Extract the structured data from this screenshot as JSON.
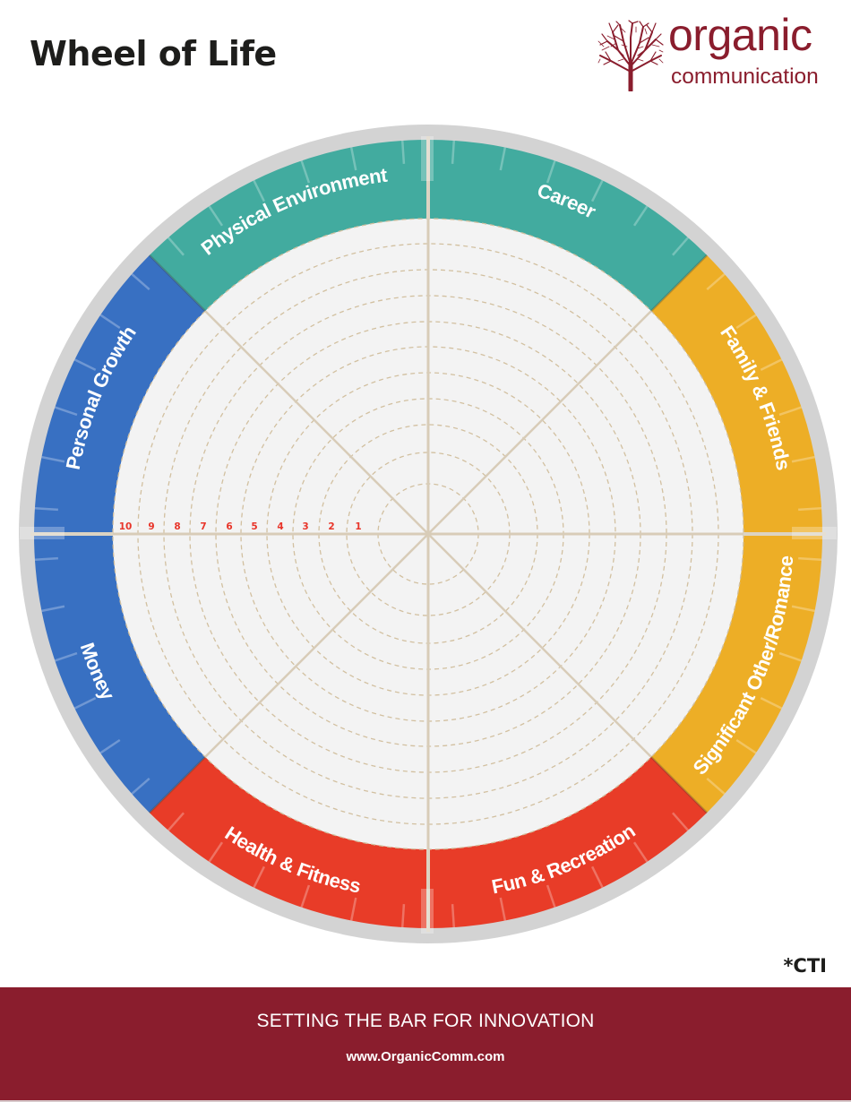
{
  "header": {
    "title": "Wheel of Life",
    "logo_word": "organic",
    "logo_sub": "communication"
  },
  "colors": {
    "teal": "#42ab9f",
    "gold": "#edae26",
    "red": "#e83c28",
    "blue": "#3870c2",
    "ring": "#d3d3d3",
    "inner": "#f3f3f3",
    "grid": "#d8ccb8",
    "dash": "#d2c0a0",
    "scale": "#e8352a",
    "brand": "#8a1d2d"
  },
  "chart_data": {
    "type": "radial-wheel",
    "title": "Wheel of Life",
    "categories": [
      {
        "label": "Career",
        "color": "#42ab9f",
        "start_deg": -90,
        "end_deg": -45
      },
      {
        "label": "Family & Friends",
        "color": "#edae26",
        "start_deg": -45,
        "end_deg": 0
      },
      {
        "label": "Significant Other/Romance",
        "color": "#edae26",
        "start_deg": 0,
        "end_deg": 45
      },
      {
        "label": "Fun & Recreation",
        "color": "#e83c28",
        "start_deg": 45,
        "end_deg": 90
      },
      {
        "label": "Health & Fitness",
        "color": "#e83c28",
        "start_deg": 90,
        "end_deg": 135
      },
      {
        "label": "Money",
        "color": "#3870c2",
        "start_deg": 135,
        "end_deg": 180
      },
      {
        "label": "Personal Growth",
        "color": "#3870c2",
        "start_deg": 180,
        "end_deg": 225
      },
      {
        "label": "Physical Environment",
        "color": "#42ab9f",
        "start_deg": 225,
        "end_deg": 270
      }
    ],
    "scale_labels": [
      "10",
      "9",
      "8",
      "7",
      "6",
      "5",
      "4",
      "3",
      "2",
      "1"
    ],
    "scale_range": [
      1,
      10
    ],
    "rings": 10,
    "values": []
  },
  "footnote": "*CTI",
  "footer": {
    "tagline": "SETTING THE BAR FOR INNOVATION",
    "url": "www.OrganicComm.com"
  }
}
